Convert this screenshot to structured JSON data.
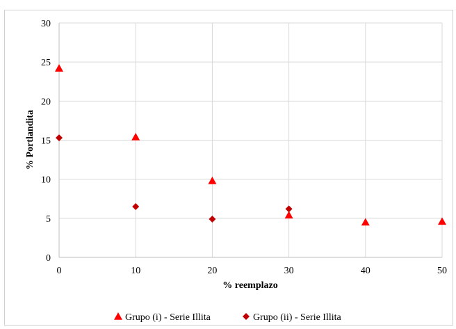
{
  "chart_data": {
    "type": "scatter",
    "xlabel": "% reemplazo",
    "ylabel": "% Portlandita",
    "xlim": [
      0,
      50
    ],
    "ylim": [
      0,
      30
    ],
    "xticks": [
      0,
      10,
      20,
      30,
      40,
      50
    ],
    "yticks": [
      0,
      5,
      10,
      15,
      20,
      25,
      30
    ],
    "grid": true,
    "legend_position": "bottom",
    "series": [
      {
        "name": "Grupo (i) - Serie Illita",
        "marker": "triangle",
        "color": "#ff0000",
        "points": [
          {
            "x": 0,
            "y": 24.2
          },
          {
            "x": 10,
            "y": 15.4
          },
          {
            "x": 20,
            "y": 9.8
          },
          {
            "x": 30,
            "y": 5.4
          },
          {
            "x": 40,
            "y": 4.5
          },
          {
            "x": 50,
            "y": 4.6
          }
        ]
      },
      {
        "name": "Grupo (ii) - Serie Illita",
        "marker": "diamond",
        "color": "#c00000",
        "points": [
          {
            "x": 0,
            "y": 15.3
          },
          {
            "x": 10,
            "y": 6.5
          },
          {
            "x": 20,
            "y": 4.9
          },
          {
            "x": 30,
            "y": 6.2
          }
        ]
      }
    ]
  }
}
